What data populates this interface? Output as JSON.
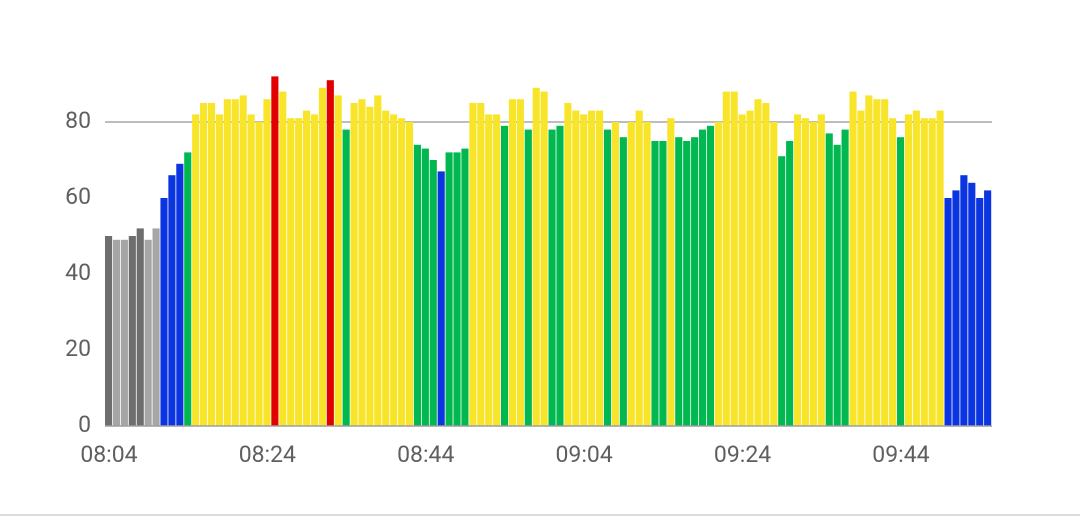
{
  "chart_data": {
    "type": "bar",
    "categories": [
      "08:04",
      null,
      null,
      null,
      null,
      null,
      null,
      null,
      null,
      null,
      null,
      null,
      null,
      null,
      null,
      null,
      null,
      null,
      null,
      null,
      "08:24",
      null,
      null,
      null,
      null,
      null,
      null,
      null,
      null,
      null,
      null,
      null,
      null,
      null,
      null,
      null,
      null,
      null,
      null,
      null,
      "08:44",
      null,
      null,
      null,
      null,
      null,
      null,
      null,
      null,
      null,
      null,
      null,
      null,
      null,
      null,
      null,
      null,
      null,
      null,
      null,
      "09:04",
      null,
      null,
      null,
      null,
      null,
      null,
      null,
      null,
      null,
      null,
      null,
      null,
      null,
      null,
      null,
      null,
      null,
      null,
      null,
      "09:24",
      null,
      null,
      null,
      null,
      null,
      null,
      null,
      null,
      null,
      null,
      null,
      null,
      null,
      null,
      null,
      null,
      null,
      null,
      null,
      "09:44",
      null,
      null,
      null,
      null,
      null,
      null,
      null,
      null,
      null,
      null,
      null
    ],
    "values": [
      50,
      49,
      49,
      50,
      52,
      49,
      52,
      60,
      66,
      69,
      72,
      82,
      85,
      85,
      82,
      86,
      86,
      87,
      82,
      80,
      86,
      92,
      88,
      81,
      81,
      83,
      82,
      89,
      91,
      87,
      78,
      85,
      86,
      84,
      87,
      83,
      82,
      81,
      80,
      74,
      73,
      70,
      67,
      72,
      72,
      73,
      85,
      85,
      82,
      82,
      79,
      86,
      86,
      78,
      89,
      88,
      78,
      79,
      85,
      83,
      82,
      83,
      83,
      78,
      80,
      76,
      80,
      83,
      80,
      75,
      75,
      81,
      76,
      75,
      76,
      78,
      79,
      80,
      88,
      88,
      82,
      83,
      86,
      85,
      80,
      71,
      75,
      82,
      81,
      80,
      82,
      77,
      74,
      78,
      88,
      83,
      87,
      86,
      86,
      81,
      76,
      82,
      83,
      81,
      81,
      83,
      60,
      62,
      66,
      64,
      60,
      62
    ],
    "colors": [
      "#6e6e6e",
      "#a6a6a6",
      "#a6a6a6",
      "#6e6e6e",
      "#6e6e6e",
      "#a6a6a6",
      "#a6a6a6",
      "#0a35e0",
      "#0a35e0",
      "#0a35e0",
      "#00b84f",
      "#f8e52a",
      "#f8e52a",
      "#f8e52a",
      "#f8e52a",
      "#f8e52a",
      "#f8e52a",
      "#f8e52a",
      "#f8e52a",
      "#f8e52a",
      "#f8e52a",
      "#e00000",
      "#f8e52a",
      "#f8e52a",
      "#f8e52a",
      "#f8e52a",
      "#f8e52a",
      "#f8e52a",
      "#e00000",
      "#f8e52a",
      "#00b84f",
      "#f8e52a",
      "#f8e52a",
      "#f8e52a",
      "#f8e52a",
      "#f8e52a",
      "#f8e52a",
      "#f8e52a",
      "#f8e52a",
      "#00b84f",
      "#00b84f",
      "#00b84f",
      "#0a35e0",
      "#00b84f",
      "#00b84f",
      "#00b84f",
      "#f8e52a",
      "#f8e52a",
      "#f8e52a",
      "#f8e52a",
      "#00b84f",
      "#f8e52a",
      "#f8e52a",
      "#00b84f",
      "#f8e52a",
      "#f8e52a",
      "#00b84f",
      "#00b84f",
      "#f8e52a",
      "#f8e52a",
      "#f8e52a",
      "#f8e52a",
      "#f8e52a",
      "#00b84f",
      "#f8e52a",
      "#00b84f",
      "#f8e52a",
      "#f8e52a",
      "#f8e52a",
      "#00b84f",
      "#00b84f",
      "#f8e52a",
      "#00b84f",
      "#00b84f",
      "#00b84f",
      "#00b84f",
      "#00b84f",
      "#f8e52a",
      "#f8e52a",
      "#f8e52a",
      "#f8e52a",
      "#f8e52a",
      "#f8e52a",
      "#f8e52a",
      "#f8e52a",
      "#00b84f",
      "#00b84f",
      "#f8e52a",
      "#f8e52a",
      "#f8e52a",
      "#f8e52a",
      "#00b84f",
      "#00b84f",
      "#00b84f",
      "#f8e52a",
      "#f8e52a",
      "#f8e52a",
      "#f8e52a",
      "#f8e52a",
      "#f8e52a",
      "#00b84f",
      "#f8e52a",
      "#f8e52a",
      "#f8e52a",
      "#f8e52a",
      "#f8e52a",
      "#0a35e0",
      "#0a35e0",
      "#0a35e0",
      "#0a35e0",
      "#0a35e0",
      "#0a35e0"
    ],
    "ylim": [
      0,
      100
    ],
    "yticks": [
      0,
      20,
      40,
      60,
      80
    ],
    "reference_line": 80
  }
}
